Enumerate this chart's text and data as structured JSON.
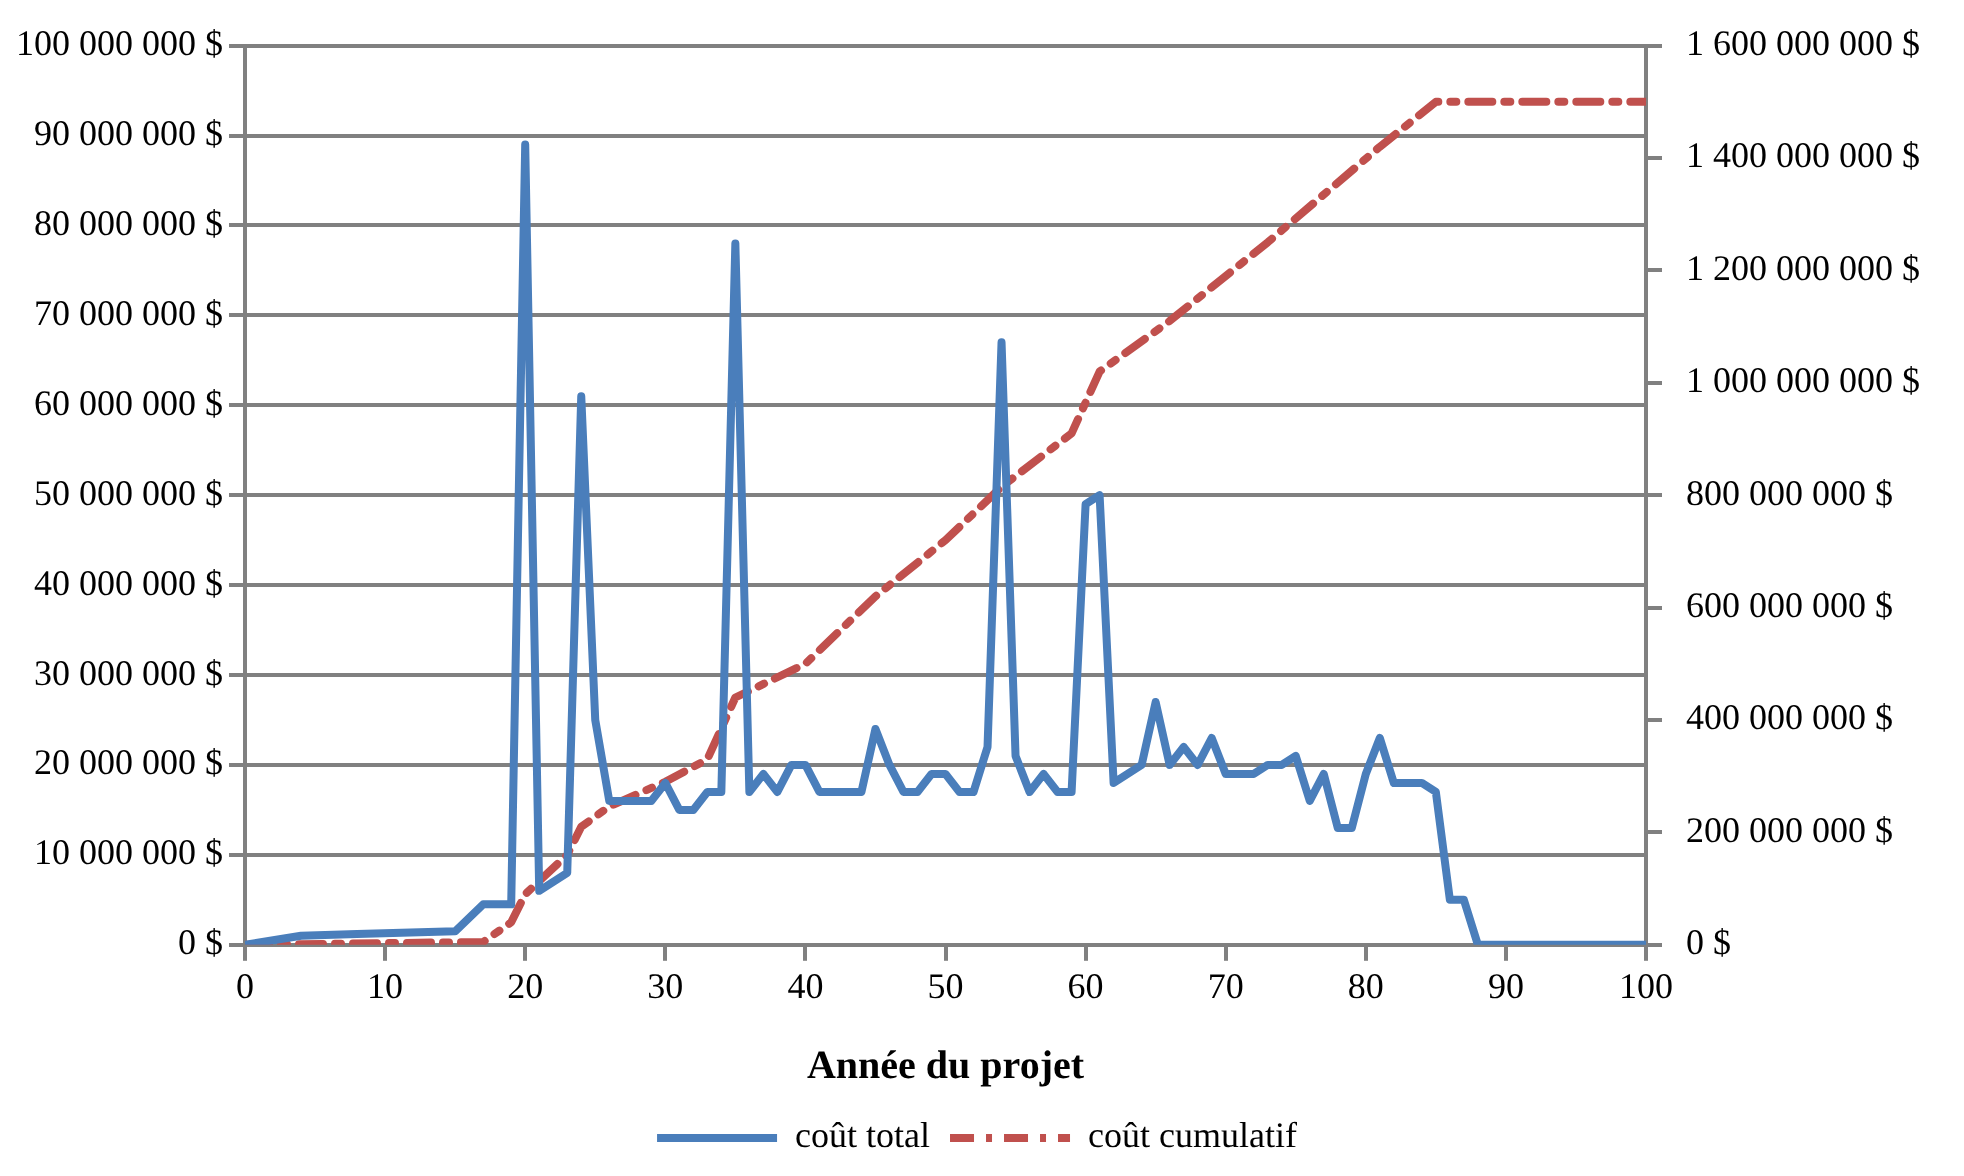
{
  "chart_data": {
    "type": "line",
    "xlabel": "Année du projet",
    "x": [
      0,
      4,
      8,
      15,
      17,
      19,
      20,
      21,
      23,
      24,
      25,
      26,
      29,
      30,
      31,
      32,
      33,
      34,
      35,
      36,
      37,
      38,
      39,
      40,
      41,
      42,
      44,
      45,
      46,
      47,
      48,
      49,
      50,
      51,
      52,
      53,
      54,
      55,
      56,
      57,
      58,
      59,
      60,
      61,
      62,
      63,
      64,
      65,
      66,
      67,
      68,
      69,
      70,
      71,
      72,
      73,
      74,
      75,
      76,
      77,
      78,
      79,
      80,
      81,
      82,
      83,
      84,
      85,
      86,
      87,
      88,
      100
    ],
    "xlim": [
      0,
      100
    ],
    "xticks": [
      0,
      10,
      20,
      30,
      40,
      50,
      60,
      70,
      80,
      90,
      100
    ],
    "ylim": [
      0,
      100000000
    ],
    "yticks": [
      {
        "value": 0,
        "label": "0 $"
      },
      {
        "value": 10000000,
        "label": "10 000 000 $"
      },
      {
        "value": 20000000,
        "label": "20 000 000 $"
      },
      {
        "value": 30000000,
        "label": "30 000 000 $"
      },
      {
        "value": 40000000,
        "label": "40 000 000 $"
      },
      {
        "value": 50000000,
        "label": "50 000 000 $"
      },
      {
        "value": 60000000,
        "label": "60 000 000 $"
      },
      {
        "value": 70000000,
        "label": "70 000 000 $"
      },
      {
        "value": 80000000,
        "label": "80 000 000 $"
      },
      {
        "value": 90000000,
        "label": "90 000 000 $"
      },
      {
        "value": 100000000,
        "label": "100 000 000 $"
      }
    ],
    "y2lim": [
      0,
      1600000000
    ],
    "y2ticks": [
      {
        "value": 0,
        "label": "0 $"
      },
      {
        "value": 200000000,
        "label": "200 000 000 $"
      },
      {
        "value": 400000000,
        "label": "400 000 000 $"
      },
      {
        "value": 600000000,
        "label": "600 000 000 $"
      },
      {
        "value": 800000000,
        "label": "800 000 000 $"
      },
      {
        "value": 1000000000,
        "label": "1 000 000 000 $"
      },
      {
        "value": 1200000000,
        "label": "1 200 000 000 $"
      },
      {
        "value": 1400000000,
        "label": "1 400 000 000 $"
      },
      {
        "value": 1600000000,
        "label": "1 600 000 000 $"
      }
    ],
    "grid": "y",
    "legend": "bottom",
    "marker": "none",
    "series": [
      {
        "name": "coût total",
        "color": "#4a7ebb",
        "line_style": "solid",
        "values": [
          0,
          1000000,
          1200000,
          1500000,
          4500000,
          4500000,
          89000000,
          6000000,
          8000000,
          61000000,
          25000000,
          16000000,
          16000000,
          18000000,
          15000000,
          15000000,
          17000000,
          17000000,
          78000000,
          17000000,
          19000000,
          17000000,
          20000000,
          20000000,
          17000000,
          17000000,
          17000000,
          24000000,
          20000000,
          17000000,
          17000000,
          19000000,
          19000000,
          17000000,
          17000000,
          22000000,
          67000000,
          21000000,
          17000000,
          19000000,
          17000000,
          17000000,
          49000000,
          50000000,
          18000000,
          19000000,
          20000000,
          27000000,
          20000000,
          22000000,
          20000000,
          23000000,
          19000000,
          19000000,
          19000000,
          20000000,
          20000000,
          21000000,
          16000000,
          19000000,
          13000000,
          13000000,
          19000000,
          23000000,
          18000000,
          18000000,
          18000000,
          17000000,
          5000000,
          5000000,
          0,
          0
        ]
      },
      {
        "name": "coût cumulatif",
        "color": "#c0504d",
        "line_style": "dashdot",
        "axis": "y2",
        "x": [
          0,
          17,
          19,
          20,
          23,
          24,
          26,
          30,
          33,
          35,
          40,
          45,
          49,
          50,
          54,
          59,
          61,
          66,
          73,
          81,
          85,
          100
        ],
        "values": [
          0,
          5000000,
          40000000,
          90000000,
          160000000,
          210000000,
          246000000,
          290000000,
          330000000,
          440000000,
          500000000,
          620000000,
          700000000,
          720000000,
          815000000,
          910000000,
          1020000000,
          1110000000,
          1250000000,
          1420000000,
          1500000000,
          1500000000
        ]
      }
    ]
  }
}
